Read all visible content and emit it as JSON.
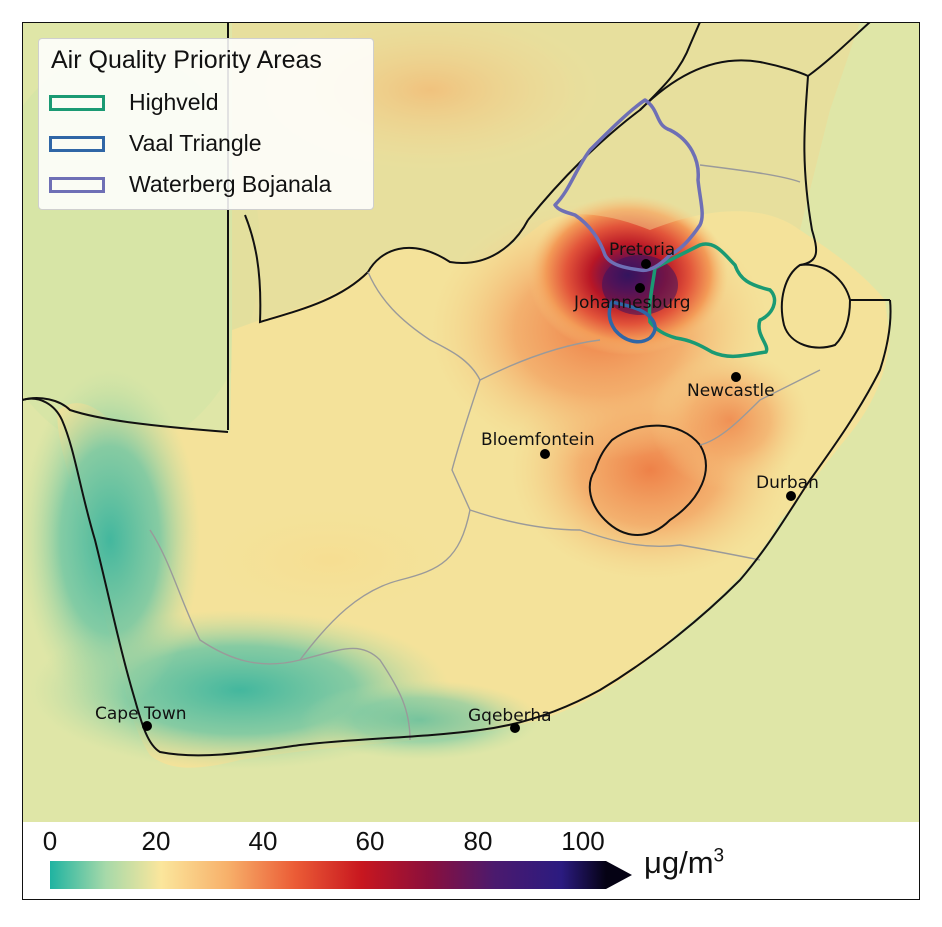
{
  "legend": {
    "title": "Air Quality Priority Areas",
    "items": [
      {
        "label": "Highveld",
        "color": "#1a9a73"
      },
      {
        "label": "Vaal Triangle",
        "color": "#2f66a6"
      },
      {
        "label": "Waterberg Bojanala",
        "color": "#6e6fb5"
      }
    ]
  },
  "cities": [
    {
      "name": "Pretoria"
    },
    {
      "name": "Johannesburg"
    },
    {
      "name": "Newcastle"
    },
    {
      "name": "Bloemfontein"
    },
    {
      "name": "Durban"
    },
    {
      "name": "Cape Town"
    },
    {
      "name": "Gqeberha"
    }
  ],
  "colorbar": {
    "ticks": [
      "0",
      "20",
      "40",
      "60",
      "80",
      "100"
    ],
    "unit_base": "μg/m",
    "unit_exp": "3",
    "range": [
      0,
      100
    ],
    "extend": "max"
  },
  "colors": {
    "sea": "#d9e3a4",
    "land_low": "#6cc4a6",
    "land_mid": "#f7e49b",
    "land_high": "#e86a35",
    "hotspot": "#b21622",
    "peak": "#2b145c"
  }
}
